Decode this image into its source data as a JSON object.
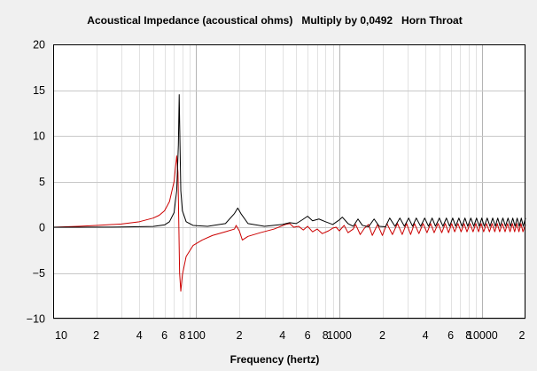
{
  "chart_data": {
    "type": "line",
    "title": "Acoustical Impedance (acoustical ohms)   Multiply by 0,0492   Horn Throat",
    "xlabel": "Frequency (hertz)",
    "ylabel": "",
    "x_scale": "log",
    "xlim": [
      10,
      20000
    ],
    "ylim": [
      -10,
      20
    ],
    "y_ticks": [
      20,
      15,
      10,
      5,
      0,
      -5,
      -10
    ],
    "y_tick_labels": [
      "20",
      "15",
      "10",
      "5",
      "0",
      "−5",
      "−10"
    ],
    "x_tick_labels": [
      {
        "x": 10,
        "label": "10"
      },
      {
        "x": 20,
        "label": "2"
      },
      {
        "x": 40,
        "label": "4"
      },
      {
        "x": 60,
        "label": "6"
      },
      {
        "x": 80,
        "label": "8"
      },
      {
        "x": 100,
        "label": "100"
      },
      {
        "x": 200,
        "label": "2"
      },
      {
        "x": 400,
        "label": "4"
      },
      {
        "x": 600,
        "label": "6"
      },
      {
        "x": 800,
        "label": "8"
      },
      {
        "x": 1000,
        "label": "1000"
      },
      {
        "x": 2000,
        "label": "2"
      },
      {
        "x": 4000,
        "label": "4"
      },
      {
        "x": 6000,
        "label": "6"
      },
      {
        "x": 8000,
        "label": "8"
      },
      {
        "x": 10000,
        "label": "10000"
      },
      {
        "x": 20000,
        "label": "2"
      }
    ],
    "grid": true,
    "legend": "none",
    "series": [
      {
        "color": "#000000",
        "points": [
          [
            10,
            0.0
          ],
          [
            30,
            0.02
          ],
          [
            50,
            0.08
          ],
          [
            60,
            0.25
          ],
          [
            65,
            0.6
          ],
          [
            70,
            1.6
          ],
          [
            73,
            4.0
          ],
          [
            75,
            9.0
          ],
          [
            76,
            14.5
          ],
          [
            77,
            9.0
          ],
          [
            78,
            4.0
          ],
          [
            80,
            1.8
          ],
          [
            85,
            0.6
          ],
          [
            95,
            0.2
          ],
          [
            120,
            0.1
          ],
          [
            160,
            0.4
          ],
          [
            185,
            1.5
          ],
          [
            195,
            2.1
          ],
          [
            205,
            1.5
          ],
          [
            230,
            0.4
          ],
          [
            300,
            0.1
          ],
          [
            400,
            0.3
          ],
          [
            450,
            0.5
          ],
          [
            500,
            0.4
          ],
          [
            550,
            0.8
          ],
          [
            600,
            1.2
          ],
          [
            650,
            0.7
          ],
          [
            720,
            0.9
          ],
          [
            800,
            0.6
          ],
          [
            900,
            0.3
          ],
          [
            1000,
            0.8
          ],
          [
            1050,
            1.1
          ],
          [
            1150,
            0.4
          ],
          [
            1250,
            0.1
          ],
          [
            1350,
            0.9
          ],
          [
            1450,
            0.2
          ],
          [
            1600,
            0.05
          ],
          [
            1750,
            0.9
          ],
          [
            1900,
            0.1
          ],
          [
            2100,
            0.05
          ],
          [
            2250,
            1.0
          ],
          [
            2450,
            0.1
          ],
          [
            2650,
            1.0
          ],
          [
            2850,
            0.1
          ],
          [
            3050,
            1.0
          ],
          [
            3250,
            0.1
          ],
          [
            3450,
            1.0
          ],
          [
            3700,
            0.1
          ],
          [
            3950,
            1.0
          ],
          [
            4200,
            0.1
          ],
          [
            4450,
            1.0
          ],
          [
            4700,
            0.1
          ],
          [
            5000,
            1.0
          ],
          [
            5300,
            0.1
          ],
          [
            5600,
            1.0
          ],
          [
            5900,
            0.1
          ],
          [
            6200,
            1.0
          ],
          [
            6500,
            0.1
          ],
          [
            6850,
            1.0
          ],
          [
            7200,
            0.1
          ],
          [
            7550,
            1.0
          ],
          [
            7900,
            0.1
          ],
          [
            8300,
            1.0
          ],
          [
            8700,
            0.1
          ],
          [
            9100,
            1.0
          ],
          [
            9500,
            0.1
          ],
          [
            9900,
            1.0
          ],
          [
            10300,
            0.1
          ],
          [
            10800,
            1.0
          ],
          [
            11300,
            0.1
          ],
          [
            11800,
            1.0
          ],
          [
            12300,
            0.1
          ],
          [
            12800,
            1.0
          ],
          [
            13300,
            0.1
          ],
          [
            13900,
            1.0
          ],
          [
            14500,
            0.1
          ],
          [
            15100,
            1.0
          ],
          [
            15700,
            0.1
          ],
          [
            16300,
            1.0
          ],
          [
            16900,
            0.1
          ],
          [
            17500,
            1.0
          ],
          [
            18100,
            0.1
          ],
          [
            18700,
            1.0
          ],
          [
            19300,
            0.1
          ],
          [
            20000,
            1.0
          ]
        ]
      },
      {
        "color": "#cc0000",
        "points": [
          [
            10,
            0.0
          ],
          [
            15,
            0.1
          ],
          [
            20,
            0.2
          ],
          [
            30,
            0.35
          ],
          [
            40,
            0.6
          ],
          [
            50,
            1.0
          ],
          [
            55,
            1.3
          ],
          [
            60,
            1.8
          ],
          [
            65,
            2.8
          ],
          [
            70,
            5.0
          ],
          [
            73,
            7.8
          ],
          [
            74.5,
            6.0
          ],
          [
            75.5,
            0.5
          ],
          [
            76.5,
            -5.0
          ],
          [
            78,
            -7.0
          ],
          [
            80,
            -5.2
          ],
          [
            85,
            -3.2
          ],
          [
            95,
            -2.0
          ],
          [
            110,
            -1.4
          ],
          [
            130,
            -0.9
          ],
          [
            160,
            -0.5
          ],
          [
            185,
            -0.2
          ],
          [
            190,
            0.2
          ],
          [
            200,
            -0.4
          ],
          [
            210,
            -1.4
          ],
          [
            230,
            -1.0
          ],
          [
            280,
            -0.6
          ],
          [
            350,
            -0.2
          ],
          [
            420,
            0.3
          ],
          [
            450,
            0.4
          ],
          [
            480,
            0.0
          ],
          [
            520,
            0.1
          ],
          [
            560,
            -0.3
          ],
          [
            600,
            0.1
          ],
          [
            650,
            -0.5
          ],
          [
            700,
            -0.2
          ],
          [
            760,
            -0.7
          ],
          [
            840,
            -0.4
          ],
          [
            900,
            -0.1
          ],
          [
            950,
            0.0
          ],
          [
            1000,
            -0.4
          ],
          [
            1080,
            0.2
          ],
          [
            1150,
            -0.6
          ],
          [
            1250,
            -0.2
          ],
          [
            1300,
            0.3
          ],
          [
            1400,
            -0.8
          ],
          [
            1500,
            -0.1
          ],
          [
            1600,
            0.3
          ],
          [
            1700,
            -0.9
          ],
          [
            1850,
            0.3
          ],
          [
            2000,
            -0.9
          ],
          [
            2150,
            0.4
          ],
          [
            2350,
            -0.8
          ],
          [
            2550,
            0.4
          ],
          [
            2750,
            -0.8
          ],
          [
            2950,
            0.4
          ],
          [
            3150,
            -0.8
          ],
          [
            3350,
            0.4
          ],
          [
            3600,
            -0.7
          ],
          [
            3850,
            0.4
          ],
          [
            4100,
            -0.6
          ],
          [
            4350,
            0.4
          ],
          [
            4600,
            -0.6
          ],
          [
            4900,
            0.4
          ],
          [
            5200,
            -0.6
          ],
          [
            5500,
            0.4
          ],
          [
            5800,
            -0.6
          ],
          [
            6100,
            0.4
          ],
          [
            6400,
            -0.5
          ],
          [
            6750,
            0.4
          ],
          [
            7100,
            -0.5
          ],
          [
            7450,
            0.4
          ],
          [
            7800,
            -0.5
          ],
          [
            8200,
            0.4
          ],
          [
            8600,
            -0.5
          ],
          [
            9000,
            0.4
          ],
          [
            9400,
            -0.5
          ],
          [
            9800,
            0.4
          ],
          [
            10200,
            -0.5
          ],
          [
            10700,
            0.4
          ],
          [
            11200,
            -0.5
          ],
          [
            11700,
            0.4
          ],
          [
            12200,
            -0.5
          ],
          [
            12700,
            0.4
          ],
          [
            13200,
            -0.5
          ],
          [
            13800,
            0.4
          ],
          [
            14400,
            -0.5
          ],
          [
            15000,
            0.4
          ],
          [
            15600,
            -0.5
          ],
          [
            16200,
            0.4
          ],
          [
            16800,
            -0.5
          ],
          [
            17400,
            0.4
          ],
          [
            18000,
            -0.5
          ],
          [
            18600,
            0.4
          ],
          [
            19200,
            -0.5
          ],
          [
            20000,
            0.3
          ]
        ]
      }
    ]
  }
}
